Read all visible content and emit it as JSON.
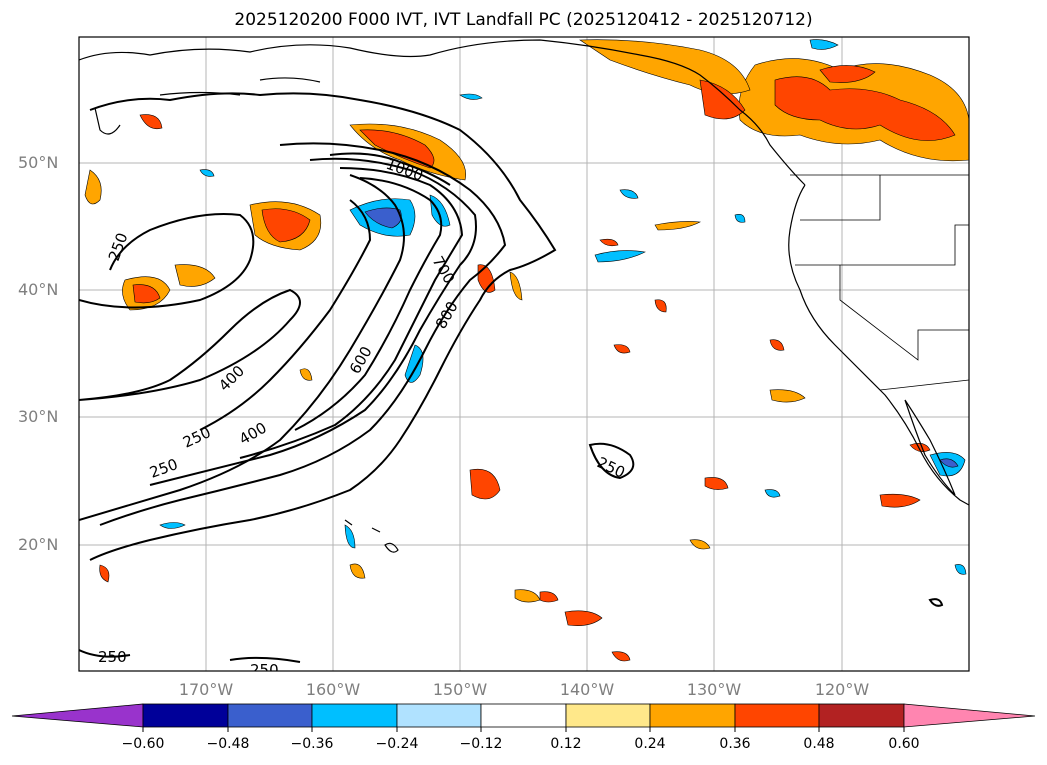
{
  "title": "2025120200 F000 IVT, IVT Landfall PC (2025120412 - 2025120712)",
  "latitude_labels": [
    "50°N",
    "40°N",
    "30°N",
    "20°N"
  ],
  "longitude_labels": [
    "170°W",
    "160°W",
    "150°W",
    "140°W",
    "130°W",
    "120°W"
  ],
  "contour_labels": [
    "1000",
    "700",
    "800",
    "600",
    "400",
    "400",
    "250",
    "250",
    "250",
    "250",
    "250",
    "250"
  ],
  "colorbar": {
    "ticks": [
      "−0.60",
      "−0.48",
      "−0.36",
      "−0.24",
      "−0.12",
      "0.12",
      "0.24",
      "0.36",
      "0.48",
      "0.60"
    ],
    "colors": [
      "#9933cc",
      "#000099",
      "#3a5fcd",
      "#00bfff",
      "#b0e2ff",
      "#ffffff",
      "#ffe88a",
      "#ffa500",
      "#ff4500",
      "#b22222",
      "#ff85b0"
    ]
  },
  "colors": {
    "land_edge": "#000000",
    "grid": "#b4b4b4",
    "frame": "#000000"
  }
}
